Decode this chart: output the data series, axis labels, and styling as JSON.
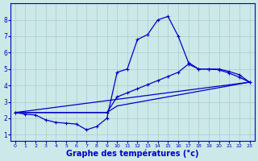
{
  "background_color": "#cce8e8",
  "grid_color": "#aacccc",
  "line_color": "#0000cc",
  "xlabel": "Graphe des températures (°c)",
  "xlabel_fontsize": 7,
  "xlim": [
    -0.5,
    23.5
  ],
  "ylim": [
    0.6,
    9.0
  ],
  "xticks": [
    0,
    1,
    2,
    3,
    4,
    5,
    6,
    7,
    8,
    9,
    10,
    11,
    12,
    13,
    14,
    15,
    16,
    17,
    18,
    19,
    20,
    21,
    22,
    23
  ],
  "yticks": [
    1,
    2,
    3,
    4,
    5,
    6,
    7,
    8
  ],
  "curve1_x": [
    0,
    1,
    2,
    3,
    4,
    5,
    6,
    7,
    8,
    9,
    10,
    11,
    12,
    13,
    14,
    15,
    16,
    17,
    18,
    19,
    20,
    21,
    22,
    23
  ],
  "curve1_y": [
    2.35,
    2.25,
    2.2,
    1.9,
    1.75,
    1.7,
    1.65,
    1.3,
    1.5,
    2.0,
    4.8,
    5.0,
    6.8,
    7.1,
    8.0,
    8.2,
    7.0,
    5.4,
    5.0,
    5.0,
    4.95,
    4.75,
    4.5,
    4.2
  ],
  "curve2_x": [
    0,
    9,
    10,
    11,
    12,
    13,
    14,
    15,
    16,
    17,
    18,
    19,
    20,
    21,
    22,
    23
  ],
  "curve2_y": [
    2.35,
    2.35,
    3.3,
    3.55,
    3.8,
    4.05,
    4.3,
    4.55,
    4.8,
    5.3,
    5.0,
    5.0,
    5.0,
    4.85,
    4.65,
    4.2
  ],
  "curve3_x": [
    0,
    9,
    10,
    23
  ],
  "curve3_y": [
    2.35,
    2.35,
    2.75,
    4.2
  ],
  "curve4_x": [
    0,
    23
  ],
  "curve4_y": [
    2.35,
    4.2
  ]
}
